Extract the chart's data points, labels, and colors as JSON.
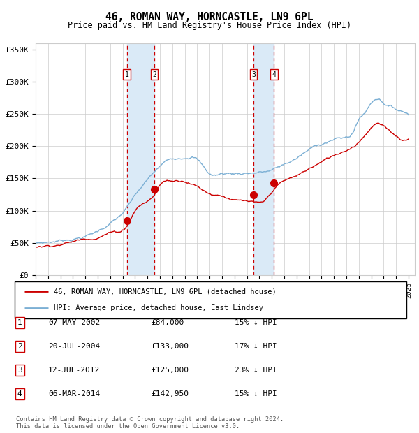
{
  "title": "46, ROMAN WAY, HORNCASTLE, LN9 6PL",
  "subtitle": "Price paid vs. HM Land Registry's House Price Index (HPI)",
  "legend_line1": "46, ROMAN WAY, HORNCASTLE, LN9 6PL (detached house)",
  "legend_line2": "HPI: Average price, detached house, East Lindsey",
  "footer": "Contains HM Land Registry data © Crown copyright and database right 2024.\nThis data is licensed under the Open Government Licence v3.0.",
  "transactions": [
    {
      "num": 1,
      "date": "07-MAY-2002",
      "price": 84000,
      "pct": "15%"
    },
    {
      "num": 2,
      "date": "20-JUL-2004",
      "price": 133000,
      "pct": "17%"
    },
    {
      "num": 3,
      "date": "12-JUL-2012",
      "price": 125000,
      "pct": "23%"
    },
    {
      "num": 4,
      "date": "06-MAR-2014",
      "price": 142950,
      "pct": "15%"
    }
  ],
  "hpi_color": "#7bafd4",
  "price_color": "#cc0000",
  "dot_color": "#cc0000",
  "shade_color": "#daeaf7",
  "dashed_color": "#cc0000",
  "grid_color": "#cccccc",
  "background_color": "#ffffff",
  "ylim": [
    0,
    360000
  ],
  "yticks": [
    0,
    50000,
    100000,
    150000,
    200000,
    250000,
    300000,
    350000
  ],
  "xlim_start": 1995.0,
  "xlim_end": 2025.5,
  "hpi_anchors_t": [
    1995,
    1996,
    1997,
    1998,
    1999,
    2000,
    2001,
    2002,
    2003,
    2004,
    2005,
    2006,
    2007,
    2007.8,
    2009,
    2009.5,
    2010,
    2011,
    2012,
    2013,
    2014,
    2015,
    2016,
    2017,
    2018,
    2019,
    2020,
    2020.5,
    2021,
    2021.5,
    2022,
    2022.5,
    2023,
    2023.5,
    2024,
    2025
  ],
  "hpi_anchors_v": [
    50000,
    52000,
    55000,
    59000,
    64000,
    72000,
    85000,
    100000,
    125000,
    148000,
    168000,
    180000,
    186000,
    188000,
    162000,
    160000,
    162000,
    163000,
    165000,
    167000,
    170000,
    178000,
    188000,
    200000,
    210000,
    218000,
    220000,
    228000,
    248000,
    260000,
    275000,
    283000,
    278000,
    272000,
    268000,
    262000
  ],
  "price_anchors_t": [
    1995,
    1996,
    1997,
    1998,
    1999,
    2000,
    2001,
    2002.35,
    2003,
    2004.55,
    2005,
    2006,
    2007,
    2008,
    2009,
    2010,
    2011,
    2012.53,
    2013,
    2013.5,
    2014.17,
    2015,
    2016,
    2017,
    2018,
    2019,
    2020,
    2021,
    2022,
    2022.5,
    2023,
    2023.5,
    2024,
    2025
  ],
  "price_anchors_v": [
    44000,
    46000,
    50000,
    54000,
    59000,
    64000,
    72000,
    84000,
    108000,
    133000,
    148000,
    155000,
    157000,
    150000,
    140000,
    138000,
    132000,
    125000,
    122000,
    126000,
    142950,
    155000,
    162000,
    173000,
    183000,
    193000,
    203000,
    218000,
    242000,
    248000,
    242000,
    235000,
    228000,
    225000
  ]
}
